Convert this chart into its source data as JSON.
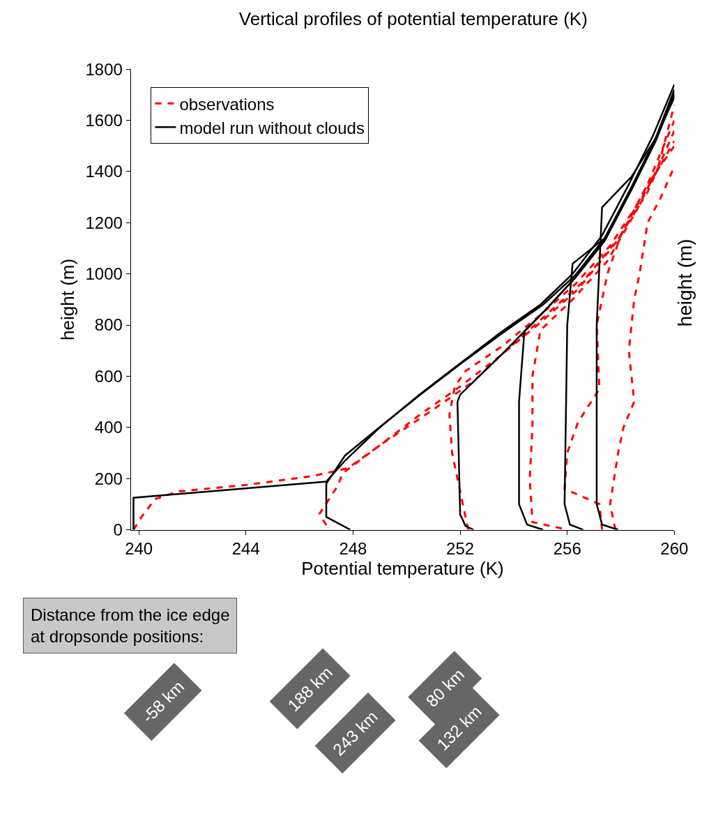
{
  "chart_data": {
    "type": "line",
    "title": "Vertical profiles of potential temperature (K)",
    "xlabel": "Potential temperature (K)",
    "ylabel": "height (m)",
    "y2label": "height (m)",
    "xlim": [
      239.7,
      260
    ],
    "xticks": [
      240,
      244,
      248,
      252,
      256,
      260
    ],
    "ylim": [
      0,
      1800
    ],
    "yticks": [
      0,
      200,
      400,
      600,
      800,
      1000,
      1200,
      1400,
      1600,
      1800
    ],
    "legend": "top left",
    "series": [
      {
        "name": "observations",
        "color": "#ff0000",
        "line_style": "dashed",
        "x": [
          239.8,
          240.1,
          240.6,
          241.5,
          244,
          246.5,
          247.8,
          249,
          251,
          252.5,
          253.5,
          255,
          256.5,
          258,
          259,
          260
        ],
        "values": [
          0,
          50,
          120,
          150,
          175,
          210,
          240,
          330,
          470,
          580,
          680,
          820,
          960,
          1150,
          1350,
          1600
        ]
      },
      {
        "color": "#ff0000",
        "line_style": "dashed",
        "x": [
          247,
          246.75,
          247.45,
          247.6,
          249,
          250.5,
          252,
          253.5,
          255,
          256.4,
          257.8,
          259,
          260
        ],
        "values": [
          18,
          63,
          175,
          220,
          330,
          450,
          560,
          680,
          810,
          940,
          1120,
          1320,
          1560
        ]
      },
      {
        "color": "#ff0000",
        "line_style": "dashed",
        "x": [
          252.3,
          252.1,
          251.7,
          251.6,
          251.8,
          252.2,
          253.6,
          255,
          256.3,
          257.6,
          258.8,
          260
        ],
        "values": [
          0,
          100,
          300,
          450,
          560,
          620,
          720,
          840,
          960,
          1110,
          1300,
          1520
        ]
      },
      {
        "color": "#ff0000",
        "line_style": "dashed",
        "x": [
          255.8,
          254.7,
          254.6,
          254.7,
          254.7,
          255,
          256.2,
          257.5,
          258.6,
          259.4,
          260
        ],
        "values": [
          5,
          30,
          200,
          400,
          600,
          780,
          900,
          1050,
          1250,
          1420,
          1660
        ]
      },
      {
        "color": "#ff0000",
        "line_style": "dashed",
        "x": [
          257.3,
          257.2,
          255.9,
          256,
          256.4,
          257.2,
          257.1,
          257.5,
          258,
          259,
          260
        ],
        "values": [
          0,
          100,
          160,
          300,
          420,
          550,
          800,
          1000,
          1150,
          1350,
          1500
        ]
      },
      {
        "color": "#ff0000",
        "line_style": "dashed",
        "x": [
          257.8,
          257.6,
          257.9,
          258.1,
          258.5,
          258.3,
          258.5,
          258.7,
          259,
          259.5,
          260
        ],
        "values": [
          0,
          100,
          300,
          400,
          500,
          700,
          900,
          1000,
          1200,
          1300,
          1420
        ]
      },
      {
        "name": "model run without clouds",
        "color": "#000000",
        "line_style": "solid",
        "x": [
          239.8,
          239.8,
          247,
          247.7,
          249,
          250.5,
          252,
          253.5,
          255,
          256.2,
          257.3,
          258.3,
          259.2,
          260
        ],
        "values": [
          0,
          125,
          188,
          270,
          400,
          530,
          650,
          770,
          880,
          1000,
          1150,
          1350,
          1540,
          1740
        ]
      },
      {
        "color": "#000000",
        "line_style": "solid",
        "x": [
          247.9,
          247,
          247,
          247.7,
          249.1,
          250.6,
          252.1,
          253.6,
          255.1,
          256.3,
          257.4,
          258.4,
          259.3,
          260
        ],
        "values": [
          0,
          50,
          180,
          290,
          410,
          535,
          655,
          770,
          880,
          995,
          1140,
          1340,
          1530,
          1720
        ]
      },
      {
        "color": "#000000",
        "line_style": "solid",
        "x": [
          252.5,
          252.2,
          252,
          251.9,
          252,
          253.6,
          255.1,
          256.3,
          257.4,
          258.4,
          259.3,
          260
        ],
        "values": [
          0,
          15,
          60,
          500,
          528,
          690,
          850,
          985,
          1130,
          1330,
          1520,
          1700
        ]
      },
      {
        "color": "#000000",
        "line_style": "solid",
        "x": [
          255.1,
          254.5,
          254.2,
          254.2,
          254.4,
          255.2,
          256.3,
          257.4,
          258.4,
          259.3,
          260
        ],
        "values": [
          0,
          20,
          100,
          500,
          776,
          860,
          985,
          1130,
          1330,
          1520,
          1710
        ]
      },
      {
        "color": "#000000",
        "line_style": "solid",
        "x": [
          256.6,
          256.1,
          255.9,
          256,
          256.2,
          257.4,
          258.4,
          259.3,
          260
        ],
        "values": [
          0,
          20,
          100,
          800,
          1040,
          1140,
          1330,
          1520,
          1700
        ]
      },
      {
        "color": "#000000",
        "line_style": "solid",
        "x": [
          257.9,
          257.3,
          257.1,
          257.1,
          257.3,
          258.4,
          259.3,
          260
        ],
        "values": [
          0,
          20,
          100,
          800,
          1260,
          1380,
          1530,
          1690
        ]
      }
    ],
    "annotations": [
      "Distance from the ice edge at dropsonde positions:",
      "-58 km",
      "188 km",
      "243 km",
      "80 km",
      "132 km"
    ]
  }
}
